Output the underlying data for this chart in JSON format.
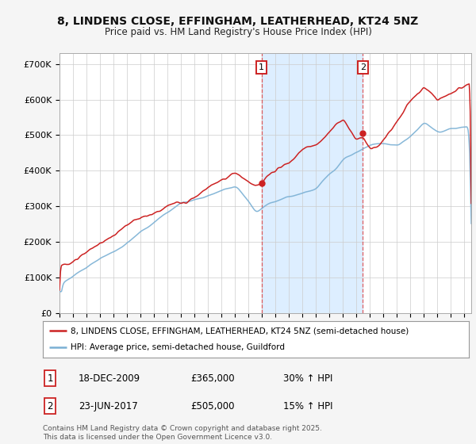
{
  "title": "8, LINDENS CLOSE, EFFINGHAM, LEATHERHEAD, KT24 5NZ",
  "subtitle": "Price paid vs. HM Land Registry's House Price Index (HPI)",
  "ylim": [
    0,
    730000
  ],
  "yticks": [
    0,
    100000,
    200000,
    300000,
    400000,
    500000,
    600000,
    700000
  ],
  "ytick_labels": [
    "£0",
    "£100K",
    "£200K",
    "£300K",
    "£400K",
    "£500K",
    "£600K",
    "£700K"
  ],
  "xlim_min": 1995,
  "xlim_max": 2025.5,
  "background_color": "#f5f5f5",
  "plot_bg": "#ffffff",
  "red_color": "#cc2222",
  "blue_color": "#7ab0d4",
  "span_color": "#ddeeff",
  "grid_color": "#cccccc",
  "transaction1": {
    "label": "1",
    "date": "18-DEC-2009",
    "price": 365000,
    "hpi_text": "30% ↑ HPI",
    "x_year": 2009.97
  },
  "transaction2": {
    "label": "2",
    "date": "23-JUN-2017",
    "price": 505000,
    "hpi_text": "15% ↑ HPI",
    "x_year": 2017.47
  },
  "legend_line1": "8, LINDENS CLOSE, EFFINGHAM, LEATHERHEAD, KT24 5NZ (semi-detached house)",
  "legend_line2": "HPI: Average price, semi-detached house, Guildford",
  "footer": "Contains HM Land Registry data © Crown copyright and database right 2025.\nThis data is licensed under the Open Government Licence v3.0."
}
